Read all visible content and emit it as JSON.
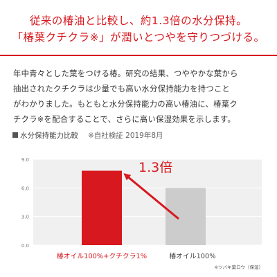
{
  "headline": {
    "line1": "従来の椿油と比較し、約1.3倍の水分保持。",
    "line2": "「椿葉クチクラ※」が潤いとつやを守りつづける。"
  },
  "body": {
    "line1": "年中青々とした葉をつける椿。研究の結果、つややかな葉から",
    "line2": "抽出されたクチクラは少量でも高い水分保持能力を持つこと",
    "line3": "がわかりました。もともと水分保持能力の高い椿油に、椿葉ク",
    "line4": "チクラ※を配合することで、さらに高い保湿効果を示します。"
  },
  "chart_heading": {
    "title": "水分保持能力比較",
    "note": "※自社検証 2019年8月"
  },
  "footnote": "※ツバキ葉ロウ（保湿）",
  "colors": {
    "accent": "#d7181e",
    "bar_secondary": "#cccccc",
    "plot_background": "#f0f0f0"
  },
  "chart_data": {
    "type": "bar",
    "categories": [
      "椿オイル100%+クチクラ1%",
      "椿オイル100%"
    ],
    "values": [
      7.8,
      6.0
    ],
    "bar_colors": [
      "#d7181e",
      "#cccccc"
    ],
    "yticks": [
      "9.0",
      "6.0",
      "3.0",
      "0.0"
    ],
    "ylim": [
      0,
      9
    ],
    "grid": true,
    "annotation": {
      "text": "1.3倍",
      "description": "red arrow from the lower bar to the taller bar"
    }
  }
}
